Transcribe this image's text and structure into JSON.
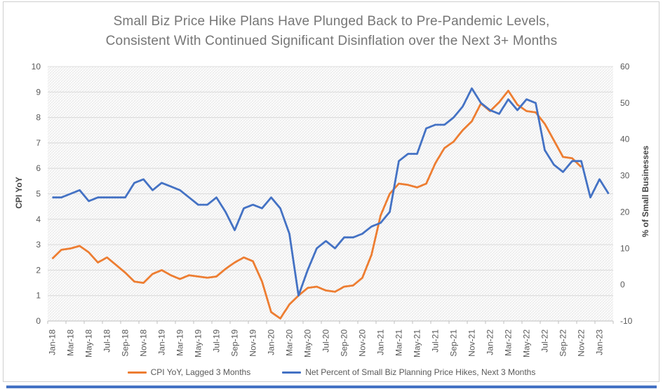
{
  "title": {
    "line1": "Small Biz Price Hike Plans Have Plunged Back to Pre-Pandemic Levels,",
    "line2": "Consistent With Continued Significant Disinflation over the Next 3+ Months"
  },
  "colors": {
    "title_text": "#767676",
    "axis_text": "#595959",
    "axis_title_text": "#464646",
    "gridline": "#dcdcdc",
    "axis_line": "#bfbfbf",
    "hatch": "#e5e5e5",
    "border": "#cfcfcf",
    "bottom_bar": "#4472C4"
  },
  "chart_data": {
    "type": "line",
    "frequency": "monthly",
    "start_month": "Jan-18",
    "x_label_interval_months": 2,
    "x_labels": [
      "Jan-18",
      "Mar-18",
      "May-18",
      "Jul-18",
      "Sep-18",
      "Nov-18",
      "Jan-19",
      "Mar-19",
      "May-19",
      "Jul-19",
      "Sep-19",
      "Nov-19",
      "Jan-20",
      "Mar-20",
      "May-20",
      "Jul-20",
      "Sep-20",
      "Nov-20",
      "Jan-21",
      "Mar-21",
      "May-21",
      "Jul-21",
      "Sep-21",
      "Nov-21",
      "Jan-22",
      "Mar-22",
      "May-22",
      "Jul-22",
      "Sep-22",
      "Nov-22",
      "Jan-23"
    ],
    "left_axis": {
      "title": "CPI YoY",
      "min": 0,
      "max": 10,
      "ticks": [
        0,
        1,
        2,
        3,
        4,
        5,
        6,
        7,
        8,
        9,
        10
      ]
    },
    "right_axis": {
      "title": "% of Small Businesses",
      "min": -10,
      "max": 60,
      "ticks": [
        -10,
        0,
        10,
        20,
        30,
        40,
        50,
        60
      ]
    },
    "grid": "horizontal",
    "legend_position": "bottom",
    "plot_background": "diagonal-hatch",
    "series": [
      {
        "name": "CPI YoY, Lagged 3 Months",
        "color": "#ED7D31",
        "axis": "left",
        "values": [
          2.45,
          2.8,
          2.85,
          2.95,
          2.7,
          2.3,
          2.5,
          2.2,
          1.9,
          1.55,
          1.5,
          1.85,
          2.0,
          1.8,
          1.65,
          1.8,
          1.75,
          1.7,
          1.75,
          2.05,
          2.3,
          2.5,
          2.35,
          1.55,
          0.35,
          0.1,
          0.65,
          1.0,
          1.3,
          1.35,
          1.2,
          1.15,
          1.35,
          1.4,
          1.7,
          2.6,
          4.15,
          5.0,
          5.4,
          5.35,
          5.25,
          5.4,
          6.2,
          6.8,
          7.05,
          7.5,
          7.85,
          8.55,
          8.25,
          8.6,
          9.05,
          8.5,
          8.25,
          8.2,
          7.75,
          7.1,
          6.45,
          6.4,
          6.05
        ]
      },
      {
        "name": "Net Percent of Small Biz Planning Price Hikes, Next 3 Months",
        "color": "#4472C4",
        "axis": "right",
        "values": [
          24,
          24,
          25,
          26,
          23,
          24,
          24,
          24,
          24,
          28,
          29,
          26,
          28,
          27,
          26,
          24,
          22,
          22,
          24,
          20,
          15,
          21,
          22,
          21,
          24,
          21,
          14,
          -3,
          4,
          10,
          12,
          10,
          13,
          13,
          14,
          16,
          17,
          20,
          34,
          36,
          36,
          43,
          44,
          44,
          46,
          49,
          54,
          50,
          48,
          47,
          51,
          48,
          51,
          50,
          37,
          33,
          31,
          34,
          34,
          24,
          29,
          25
        ]
      }
    ]
  }
}
